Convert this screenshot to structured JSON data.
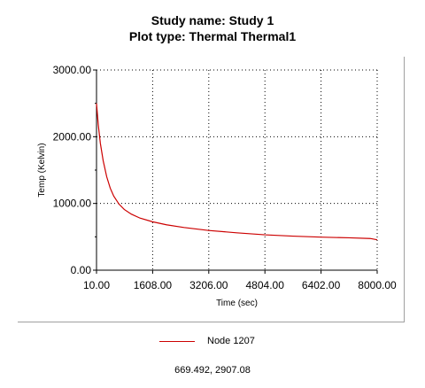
{
  "header": {
    "study_line": "Study name: Study 1",
    "plot_line": "Plot type: Thermal Thermal1"
  },
  "readout": "669.492, 2907.08",
  "chart_data": {
    "type": "line",
    "title": "Study name: Study 1",
    "subtitle": "Plot type: Thermal Thermal1",
    "xlabel": "Time (sec)",
    "ylabel": "Temp (Kelvin)",
    "xlim": [
      10.0,
      8000.0
    ],
    "ylim": [
      0.0,
      3000.0
    ],
    "x_ticks": [
      "10.00",
      "1608.00",
      "3206.00",
      "4804.00",
      "6402.00",
      "8000.00"
    ],
    "x_tick_values": [
      10,
      1608,
      3206,
      4804,
      6402,
      8000
    ],
    "y_ticks": [
      "0.00",
      "1000.00",
      "2000.00",
      "3000.00"
    ],
    "y_tick_values": [
      0,
      1000,
      2000,
      3000
    ],
    "grid": true,
    "grid_style": "dotted",
    "legend_position": "bottom-center",
    "line_color": "#cc0000",
    "series": [
      {
        "name": "Node 1207",
        "x": [
          10,
          60,
          120,
          200,
          300,
          400,
          500,
          650,
          800,
          1000,
          1250,
          1608,
          2000,
          2500,
          3206,
          4000,
          4804,
          5600,
          6402,
          7200,
          7800,
          8000
        ],
        "y": [
          2500,
          2180,
          1900,
          1640,
          1400,
          1230,
          1110,
          990,
          910,
          840,
          780,
          725,
          680,
          640,
          595,
          560,
          530,
          510,
          495,
          485,
          475,
          455
        ]
      }
    ]
  }
}
